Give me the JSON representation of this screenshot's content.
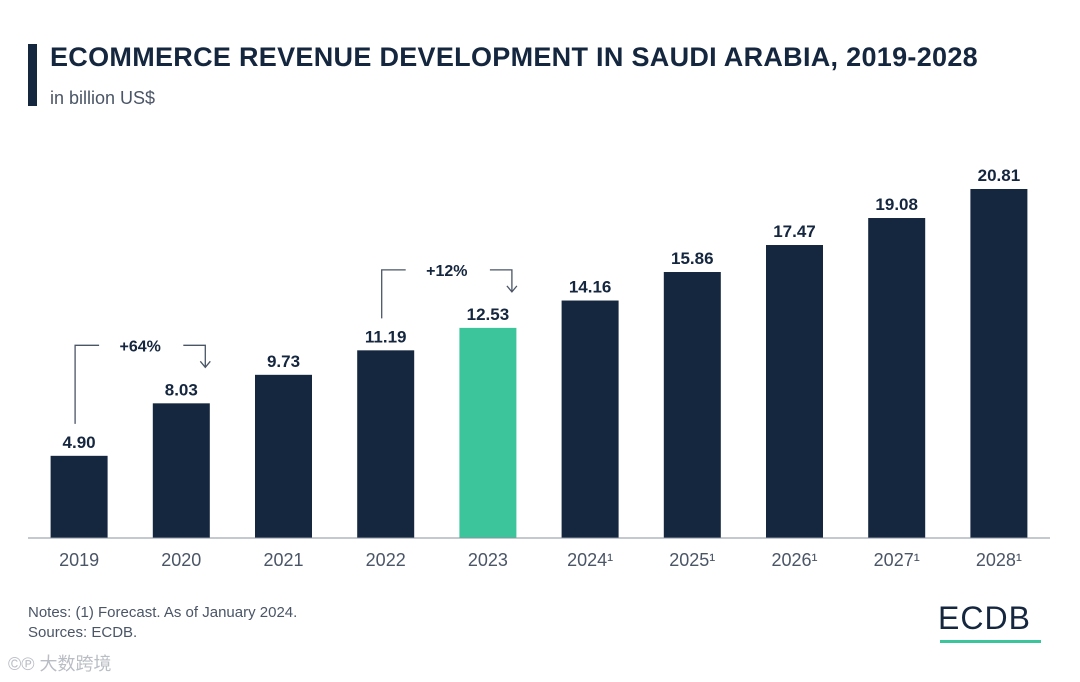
{
  "header": {
    "title": "ECOMMERCE REVENUE DEVELOPMENT IN SAUDI ARABIA, 2019-2028",
    "subtitle": "in billion US$"
  },
  "footer": {
    "notes": "Notes: (1) Forecast. As of January 2024.",
    "sources": "Sources: ECDB.",
    "brand": "ECDB",
    "watermark": "©℗ 大数跨境"
  },
  "colors": {
    "bar": "#15263f",
    "highlight": "#3cc49a",
    "text": "#15263f",
    "muted": "#4a5566"
  },
  "chart_data": {
    "type": "bar",
    "title": "ECOMMERCE REVENUE DEVELOPMENT IN SAUDI ARABIA, 2019-2028",
    "subtitle": "in billion US$",
    "xlabel": "",
    "ylabel": "",
    "categories": [
      "2019",
      "2020",
      "2021",
      "2022",
      "2023",
      "2024¹",
      "2025¹",
      "2026¹",
      "2027¹",
      "2028¹"
    ],
    "values": [
      4.9,
      8.03,
      9.73,
      11.19,
      12.53,
      14.16,
      15.86,
      17.47,
      19.08,
      20.81
    ],
    "value_labels": [
      "4.90",
      "8.03",
      "9.73",
      "11.19",
      "12.53",
      "14.16",
      "15.86",
      "17.47",
      "19.08",
      "20.81"
    ],
    "highlight_category": "2023",
    "ylim": [
      0,
      21
    ],
    "grid": false,
    "annotations": [
      {
        "text": "+64%",
        "from": "2019",
        "to": "2020"
      },
      {
        "text": "+12%",
        "from": "2022",
        "to": "2023"
      }
    ]
  }
}
